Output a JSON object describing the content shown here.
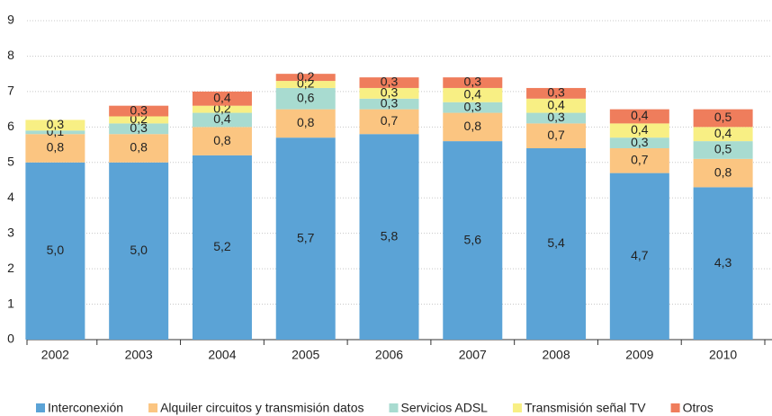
{
  "chart_data": {
    "type": "stacked_bar",
    "categories": [
      "2002",
      "2003",
      "2004",
      "2005",
      "2006",
      "2007",
      "2008",
      "2009",
      "2010"
    ],
    "ylim": [
      0,
      9
    ],
    "yticks": [
      0,
      1,
      2,
      3,
      4,
      5,
      6,
      7,
      8,
      9
    ],
    "grid": true,
    "legend": "bottom",
    "series": [
      {
        "name": "Interconexión",
        "color": "#5ba3d6",
        "values": [
          5.0,
          5.0,
          5.2,
          5.7,
          5.8,
          5.6,
          5.4,
          4.7,
          4.3
        ],
        "value_labels": [
          "5,0",
          "5,0",
          "5,2",
          "5,7",
          "5,8",
          "5,6",
          "5,4",
          "4,7",
          "4,3"
        ]
      },
      {
        "name": "Alquiler circuitos y transmisión datos",
        "color": "#fbc581",
        "values": [
          0.8,
          0.8,
          0.8,
          0.8,
          0.7,
          0.8,
          0.7,
          0.7,
          0.8
        ],
        "value_labels": [
          "0,8",
          "0,8",
          "0,8",
          "0,8",
          "0,7",
          "0,8",
          "0,7",
          "0,7",
          "0,8"
        ]
      },
      {
        "name": "Servicios ADSL",
        "color": "#a8dbd0",
        "values": [
          0.1,
          0.3,
          0.4,
          0.6,
          0.3,
          0.3,
          0.3,
          0.3,
          0.5
        ],
        "value_labels": [
          "0,1",
          "0,3",
          "0,4",
          "0,6",
          "0,3",
          "0,3",
          "0,3",
          "0,3",
          "0,5"
        ]
      },
      {
        "name": "Transmisión señal TV",
        "color": "#f8ef84",
        "values": [
          0.3,
          0.2,
          0.2,
          0.2,
          0.3,
          0.4,
          0.4,
          0.4,
          0.4
        ],
        "value_labels": [
          "0,3",
          "0,2",
          "0,2",
          "0,2",
          "0,3",
          "0,4",
          "0,4",
          "0,4",
          "0,4"
        ]
      },
      {
        "name": "Otros",
        "color": "#ef7d5c",
        "values": [
          null,
          0.3,
          0.4,
          0.2,
          0.3,
          0.3,
          0.3,
          0.4,
          0.5
        ],
        "value_labels": [
          null,
          "0,3",
          "0,4",
          "0,2",
          "0,3",
          "0,3",
          "0,3",
          "0,4",
          "0,5"
        ]
      }
    ]
  }
}
